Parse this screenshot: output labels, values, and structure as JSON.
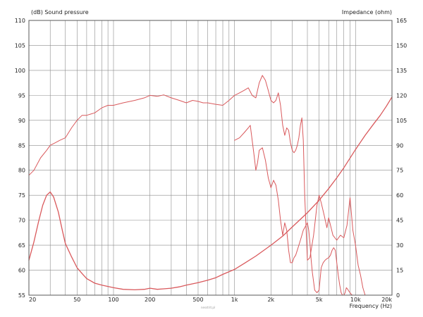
{
  "chart_data": {
    "type": "line",
    "title": "",
    "xlabel": "Frequency (Hz)",
    "ylabel_left": "(dB) Sound pressure",
    "ylabel_right": "Impedance (ohm)",
    "x_scale": "log",
    "xlim": [
      20,
      20000
    ],
    "ylim_left": [
      55,
      110
    ],
    "ylim_right": [
      0,
      165
    ],
    "grid": true,
    "x_tick_labels": [
      {
        "value": 20,
        "label": "20"
      },
      {
        "value": 50,
        "label": "50"
      },
      {
        "value": 100,
        "label": "100"
      },
      {
        "value": 200,
        "label": "200"
      },
      {
        "value": 500,
        "label": "500"
      },
      {
        "value": 1000,
        "label": "1k"
      },
      {
        "value": 2000,
        "label": "2k"
      },
      {
        "value": 5000,
        "label": "5k"
      },
      {
        "value": 10000,
        "label": "10k"
      },
      {
        "value": 20000,
        "label": "20k"
      }
    ],
    "x_gridlines": [
      20,
      30,
      40,
      50,
      60,
      70,
      80,
      90,
      100,
      200,
      300,
      400,
      500,
      600,
      700,
      800,
      900,
      1000,
      2000,
      3000,
      4000,
      5000,
      6000,
      7000,
      8000,
      9000,
      10000,
      20000
    ],
    "y_left_ticks": [
      55,
      60,
      65,
      70,
      75,
      80,
      85,
      90,
      95,
      100,
      105,
      110
    ],
    "y_right_ticks": [
      0,
      15,
      30,
      45,
      60,
      75,
      90,
      105,
      120,
      135,
      150,
      165
    ],
    "line_color": "#d9595c",
    "series": [
      {
        "axis": "left",
        "x": [
          20,
          22,
          25,
          28,
          30,
          33,
          36,
          40,
          45,
          50,
          55,
          60,
          70,
          80,
          90,
          100,
          120,
          150,
          180,
          200,
          230,
          260,
          300,
          350,
          400,
          450,
          500,
          550,
          600,
          700,
          800,
          900,
          1000,
          1100,
          1200,
          1300,
          1400,
          1500,
          1600,
          1700,
          1800,
          1900,
          2000,
          2100,
          2200,
          2300,
          2400,
          2500,
          2600,
          2700,
          2800,
          2900,
          3000,
          3100,
          3200,
          3300,
          3400,
          3500,
          3600,
          3700,
          3800,
          3900,
          4000,
          4200,
          4500,
          4800,
          5000,
          5200,
          5500,
          5800,
          6000,
          6500,
          7000,
          7500,
          8000,
          8500,
          9000,
          9500,
          10000,
          10500,
          11000,
          11500,
          12000
        ],
        "y": [
          79,
          80,
          82.5,
          84,
          85,
          85.5,
          86,
          86.5,
          88.5,
          90,
          91,
          91,
          91.5,
          92.5,
          93,
          93,
          93.5,
          94,
          94.5,
          95,
          94.8,
          95.1,
          94.5,
          94,
          93.5,
          94,
          93.8,
          93.5,
          93.5,
          93.2,
          93,
          94,
          95,
          95.5,
          96,
          96.5,
          95,
          94.5,
          97.5,
          99,
          98,
          96,
          94,
          93.5,
          94,
          95.5,
          93,
          89,
          87,
          88.5,
          88,
          85.5,
          84,
          83.5,
          84,
          85,
          86.5,
          89,
          90.5,
          86,
          75,
          68.5,
          62,
          62.5,
          67,
          73,
          75,
          73.5,
          71,
          68.5,
          70.5,
          67,
          66,
          67,
          66.5,
          69,
          74.5,
          68,
          65,
          61,
          59,
          56.5,
          55
        ]
      },
      {
        "axis": "left",
        "x": [
          1000,
          1100,
          1200,
          1300,
          1350,
          1400,
          1450,
          1500,
          1550,
          1600,
          1700,
          1800,
          1900,
          2000,
          2100,
          2200,
          2300,
          2400,
          2500,
          2600,
          2700,
          2800,
          2900,
          3000,
          3100,
          3200,
          3300,
          3400,
          3500,
          3600,
          3700,
          3800,
          3900,
          4000,
          4100,
          4200,
          4300,
          4400,
          4600,
          4800,
          5000,
          5200,
          5400,
          5600,
          5800,
          6000,
          6200,
          6400,
          6600,
          6800,
          7000,
          7200,
          7400,
          7600,
          7800,
          8000,
          8200,
          8400,
          8600,
          8800,
          9000,
          9200,
          9400
        ],
        "y": [
          86,
          86.5,
          87.5,
          88.5,
          89,
          86,
          83,
          80,
          81.5,
          84,
          84.5,
          82,
          78.5,
          76.5,
          78,
          77,
          74,
          70,
          67,
          69.5,
          68,
          64,
          61.5,
          61.5,
          62.5,
          63,
          64,
          65,
          66,
          67,
          68,
          68.5,
          69,
          69.5,
          68,
          65.5,
          62,
          59.5,
          56,
          55.5,
          56,
          60.5,
          61.5,
          62,
          62.3,
          62.5,
          63,
          64,
          64.5,
          64,
          61.5,
          59,
          57,
          55.5,
          55,
          55,
          55.5,
          56.5,
          56.2,
          55.8,
          55.5,
          55.2,
          55
        ]
      },
      {
        "axis": "right",
        "x": [
          20,
          22,
          24,
          26,
          28,
          30,
          32,
          35,
          38,
          40,
          45,
          50,
          55,
          60,
          70,
          80,
          100,
          120,
          150,
          180,
          200,
          230,
          260,
          300,
          350,
          400,
          500,
          600,
          700,
          800,
          1000,
          1200,
          1500,
          2000,
          2500,
          3000,
          4000,
          5000,
          6000,
          7000,
          8000,
          10000,
          12000,
          14000,
          16000,
          18000,
          20000
        ],
        "y": [
          21,
          32,
          44,
          54,
          60,
          62,
          59,
          50,
          38,
          31,
          23,
          16.5,
          13,
          10,
          7.2,
          6,
          4.5,
          3.5,
          3.2,
          3.5,
          4.2,
          3.5,
          3.8,
          4.2,
          5,
          6,
          7.5,
          9,
          10.5,
          12.5,
          15.5,
          19,
          23.5,
          30,
          35.5,
          41,
          49.5,
          57,
          64,
          70.5,
          76.5,
          87.5,
          96,
          102.5,
          108,
          113.5,
          119
        ]
      }
    ]
  },
  "watermark_text": "nesstrit.pl"
}
